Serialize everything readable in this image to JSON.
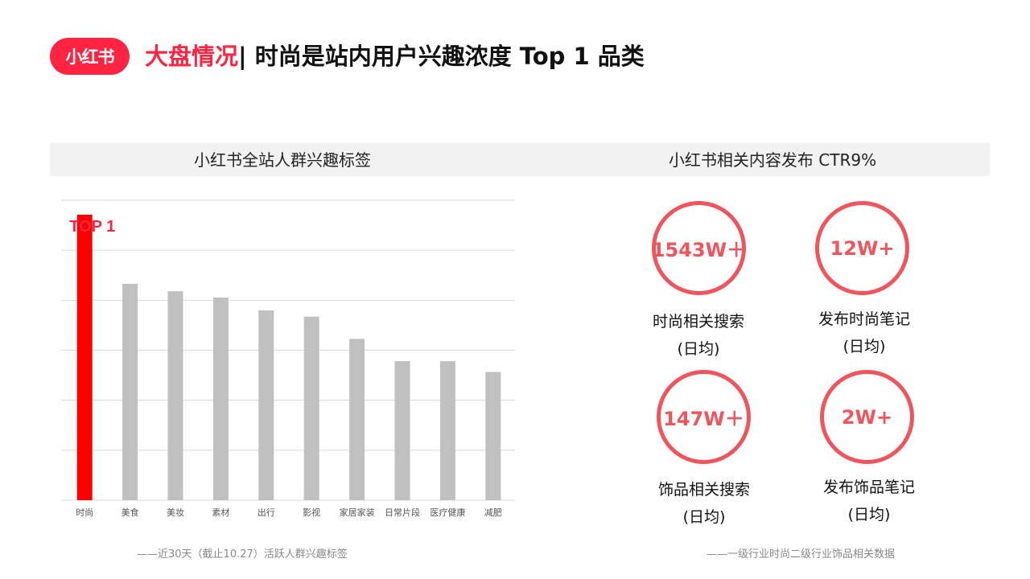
{
  "header": {
    "logo_text": "小红书",
    "title_highlight": "大盘情况",
    "title_rest": "| 时尚是站内用户兴趣浓度 Top 1 品类"
  },
  "left_panel": {
    "heading": "小红书全站人群兴趣标签",
    "footnote": "——近30天（截止10.27）活跃人群兴趣标签"
  },
  "right_panel": {
    "heading": "小红书相关内容发布 CTR9%",
    "footnote": "——一级行业时尚二级行业饰品相关数据",
    "stats": [
      {
        "value": "1543W＋",
        "label": "时尚相关搜索",
        "sub": "(日均)"
      },
      {
        "value": "12W+",
        "label": "发布时尚笔记",
        "sub": "(日均)"
      },
      {
        "value": "147W＋",
        "label": "饰品相关搜索",
        "sub": "(日均)"
      },
      {
        "value": "2W+",
        "label": "发布饰品笔记",
        "sub": "(日均)"
      }
    ]
  },
  "colors": {
    "brand": "#ff2442",
    "highlight_bar": "#ff0000",
    "bar": "#c0c0c0",
    "circle": "#f0545c",
    "grid": "#d9d9d9"
  },
  "chart_data": {
    "type": "bar",
    "categories": [
      "时尚",
      "美食",
      "美妆",
      "素材",
      "出行",
      "影视",
      "家居家装",
      "日常片段",
      "医疗健康",
      "减肥"
    ],
    "values": [
      100,
      75.8,
      73.2,
      71,
      66.5,
      64.3,
      56.5,
      48.7,
      48.7,
      44.9
    ],
    "highlight_index": 0,
    "annotation": "TOP 1",
    "ylim": [
      0,
      100
    ],
    "grid": true,
    "title": "",
    "xlabel": "",
    "ylabel": ""
  }
}
